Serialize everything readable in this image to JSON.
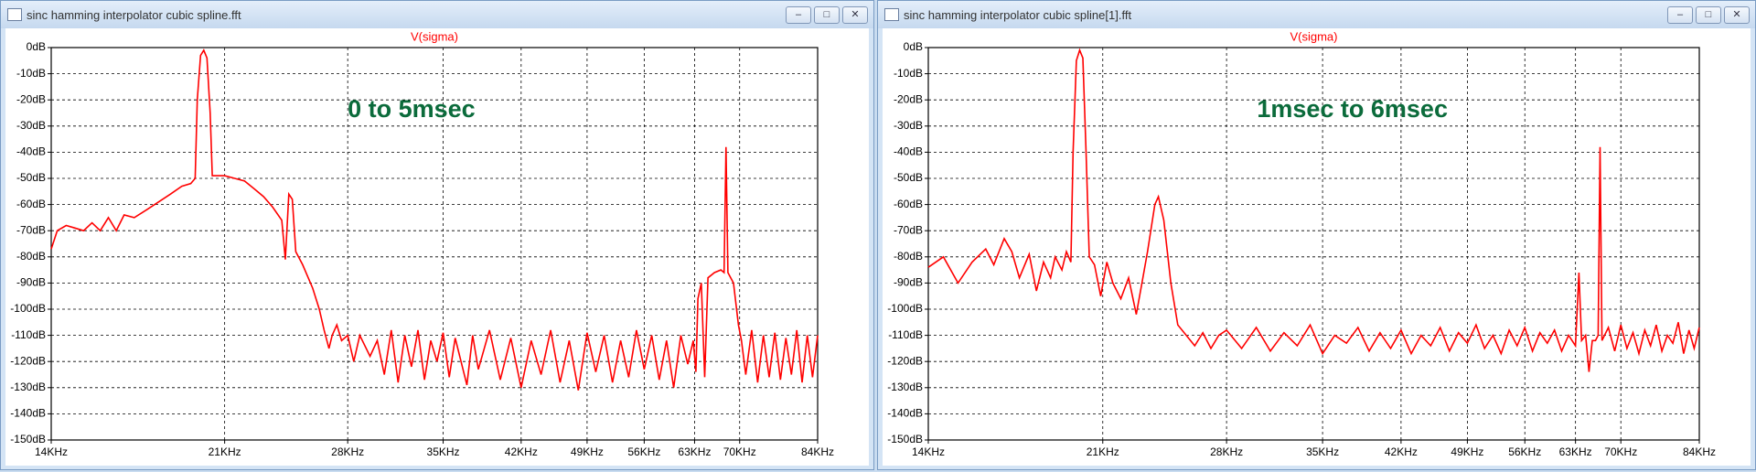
{
  "windows": [
    {
      "title": "sinc hamming interpolator cubic spline.fft"
    },
    {
      "title": "sinc hamming interpolator cubic spline[1].fft"
    }
  ],
  "chart_data": [
    {
      "type": "line",
      "annotation": "0 to 5msec",
      "xscale": "log",
      "grid": true,
      "xlim": [
        14000,
        84000
      ],
      "xticks": [
        {
          "value": 14000,
          "label": "14KHz"
        },
        {
          "value": 21000,
          "label": "21KHz"
        },
        {
          "value": 28000,
          "label": "28KHz"
        },
        {
          "value": 35000,
          "label": "35KHz"
        },
        {
          "value": 42000,
          "label": "42KHz"
        },
        {
          "value": 49000,
          "label": "49KHz"
        },
        {
          "value": 56000,
          "label": "56KHz"
        },
        {
          "value": 63000,
          "label": "63KHz"
        },
        {
          "value": 70000,
          "label": "70KHz"
        },
        {
          "value": 84000,
          "label": "84KHz"
        }
      ],
      "ylim": [
        -150,
        0
      ],
      "yticks": [
        {
          "value": 0,
          "label": "0dB"
        },
        {
          "value": -10,
          "label": "-10dB"
        },
        {
          "value": -20,
          "label": "-20dB"
        },
        {
          "value": -30,
          "label": "-30dB"
        },
        {
          "value": -40,
          "label": "-40dB"
        },
        {
          "value": -50,
          "label": "-50dB"
        },
        {
          "value": -60,
          "label": "-60dB"
        },
        {
          "value": -70,
          "label": "-70dB"
        },
        {
          "value": -80,
          "label": "-80dB"
        },
        {
          "value": -90,
          "label": "-90dB"
        },
        {
          "value": -100,
          "label": "-100dB"
        },
        {
          "value": -110,
          "label": "-110dB"
        },
        {
          "value": -120,
          "label": "-120dB"
        },
        {
          "value": -130,
          "label": "-130dB"
        },
        {
          "value": -140,
          "label": "-140dB"
        },
        {
          "value": -150,
          "label": "-150dB"
        }
      ],
      "x": [
        14000,
        14200,
        14500,
        14800,
        15100,
        15400,
        15700,
        16000,
        16300,
        16600,
        17000,
        17500,
        18000,
        18500,
        19000,
        19400,
        19600,
        19700,
        19850,
        20000,
        20150,
        20300,
        20400,
        21000,
        21500,
        22000,
        22500,
        23000,
        23500,
        24000,
        24200,
        24400,
        24600,
        24800,
        25200,
        25800,
        26200,
        26500,
        26800,
        27000,
        27300,
        27600,
        28000,
        28400,
        28800,
        29500,
        30000,
        30500,
        31000,
        31500,
        32000,
        32500,
        33000,
        33500,
        34000,
        34500,
        35000,
        35500,
        36000,
        37000,
        37500,
        38000,
        39000,
        40000,
        41000,
        42000,
        43000,
        44000,
        45000,
        46000,
        47000,
        48000,
        49000,
        50000,
        51000,
        52000,
        53000,
        54000,
        55000,
        56000,
        57000,
        58000,
        59000,
        60000,
        61000,
        62000,
        62800,
        63200,
        63500,
        64000,
        64500,
        65000,
        66000,
        67000,
        67500,
        67800,
        68100,
        69000,
        69800,
        70300,
        71000,
        72000,
        73000,
        74000,
        75000,
        76000,
        77000,
        78000,
        79000,
        80000,
        81000,
        82000,
        83000,
        84000
      ],
      "series": [
        {
          "name": "V(sigma)",
          "color": "#ff0000",
          "values": [
            -77,
            -70,
            -68,
            -69,
            -70,
            -67,
            -70,
            -65,
            -70,
            -64,
            -65,
            -62,
            -59,
            -56,
            -53,
            -52,
            -50,
            -20,
            -3,
            -1,
            -4,
            -25,
            -49,
            -49,
            -50,
            -51,
            -54,
            -57,
            -61,
            -66,
            -81,
            -56,
            -58,
            -78,
            -83,
            -92,
            -100,
            -108,
            -115,
            -110,
            -106,
            -112,
            -110,
            -120,
            -110,
            -118,
            -112,
            -125,
            -108,
            -128,
            -110,
            -122,
            -108,
            -127,
            -112,
            -120,
            -109,
            -126,
            -111,
            -129,
            -110,
            -123,
            -108,
            -127,
            -111,
            -130,
            -112,
            -125,
            -108,
            -128,
            -112,
            -131,
            -109,
            -124,
            -110,
            -128,
            -112,
            -126,
            -108,
            -123,
            -110,
            -127,
            -112,
            -130,
            -110,
            -121,
            -112,
            -124,
            -96,
            -90,
            -126,
            -88,
            -86,
            -85,
            -86,
            -38,
            -86,
            -90,
            -106,
            -112,
            -125,
            -108,
            -128,
            -110,
            -126,
            -109,
            -127,
            -111,
            -125,
            -108,
            -128,
            -110,
            -126,
            -110
          ]
        }
      ]
    },
    {
      "type": "line",
      "annotation": "1msec to 6msec",
      "xscale": "log",
      "grid": true,
      "xlim": [
        14000,
        84000
      ],
      "xticks": [
        {
          "value": 14000,
          "label": "14KHz"
        },
        {
          "value": 21000,
          "label": "21KHz"
        },
        {
          "value": 28000,
          "label": "28KHz"
        },
        {
          "value": 35000,
          "label": "35KHz"
        },
        {
          "value": 42000,
          "label": "42KHz"
        },
        {
          "value": 49000,
          "label": "49KHz"
        },
        {
          "value": 56000,
          "label": "56KHz"
        },
        {
          "value": 63000,
          "label": "63KHz"
        },
        {
          "value": 70000,
          "label": "70KHz"
        },
        {
          "value": 84000,
          "label": "84KHz"
        }
      ],
      "ylim": [
        -150,
        0
      ],
      "yticks": [
        {
          "value": 0,
          "label": "0dB"
        },
        {
          "value": -10,
          "label": "-10dB"
        },
        {
          "value": -20,
          "label": "-20dB"
        },
        {
          "value": -30,
          "label": "-30dB"
        },
        {
          "value": -40,
          "label": "-40dB"
        },
        {
          "value": -50,
          "label": "-50dB"
        },
        {
          "value": -60,
          "label": "-60dB"
        },
        {
          "value": -70,
          "label": "-70dB"
        },
        {
          "value": -80,
          "label": "-80dB"
        },
        {
          "value": -90,
          "label": "-90dB"
        },
        {
          "value": -100,
          "label": "-100dB"
        },
        {
          "value": -110,
          "label": "-110dB"
        },
        {
          "value": -120,
          "label": "-120dB"
        },
        {
          "value": -130,
          "label": "-130dB"
        },
        {
          "value": -140,
          "label": "-140dB"
        },
        {
          "value": -150,
          "label": "-150dB"
        }
      ],
      "x": [
        14000,
        14500,
        15000,
        15500,
        16000,
        16300,
        16700,
        17000,
        17300,
        17700,
        18000,
        18300,
        18600,
        18800,
        19100,
        19300,
        19500,
        19600,
        19750,
        19900,
        20050,
        20200,
        20350,
        20600,
        20900,
        21200,
        21500,
        21900,
        22300,
        22700,
        23000,
        23300,
        23700,
        23900,
        24200,
        24600,
        25000,
        25500,
        26000,
        26500,
        27000,
        27500,
        28000,
        29000,
        30000,
        31000,
        32000,
        33000,
        34000,
        35000,
        36000,
        37000,
        38000,
        39000,
        40000,
        41000,
        42000,
        43000,
        44000,
        45000,
        46000,
        47000,
        48000,
        49000,
        50000,
        51000,
        52000,
        53000,
        54000,
        55000,
        56000,
        57000,
        58000,
        59000,
        60000,
        61000,
        62000,
        63000,
        63500,
        63900,
        64500,
        65000,
        65500,
        66000,
        66400,
        66700,
        67000,
        68000,
        69000,
        70000,
        71000,
        72000,
        73000,
        74000,
        75000,
        76000,
        77000,
        78000,
        79000,
        80000,
        81000,
        82000,
        83000,
        84000
      ],
      "series": [
        {
          "name": "V(sigma)",
          "color": "#ff0000",
          "values": [
            -84,
            -80,
            -90,
            -82,
            -77,
            -83,
            -73,
            -78,
            -88,
            -79,
            -93,
            -82,
            -88,
            -80,
            -85,
            -78,
            -82,
            -40,
            -5,
            -1,
            -4,
            -40,
            -80,
            -83,
            -95,
            -82,
            -90,
            -96,
            -88,
            -102,
            -90,
            -78,
            -60,
            -57,
            -66,
            -90,
            -106,
            -110,
            -114,
            -109,
            -115,
            -110,
            -108,
            -115,
            -107,
            -116,
            -109,
            -114,
            -106,
            -117,
            -110,
            -113,
            -107,
            -116,
            -109,
            -115,
            -108,
            -117,
            -110,
            -114,
            -107,
            -116,
            -109,
            -113,
            -106,
            -115,
            -110,
            -117,
            -108,
            -114,
            -107,
            -116,
            -109,
            -113,
            -108,
            -116,
            -110,
            -114,
            -86,
            -112,
            -110,
            -124,
            -112,
            -112,
            -110,
            -38,
            -112,
            -107,
            -116,
            -106,
            -115,
            -109,
            -117,
            -108,
            -114,
            -106,
            -116,
            -110,
            -113,
            -105,
            -117,
            -108,
            -115,
            -107
          ]
        }
      ]
    }
  ]
}
